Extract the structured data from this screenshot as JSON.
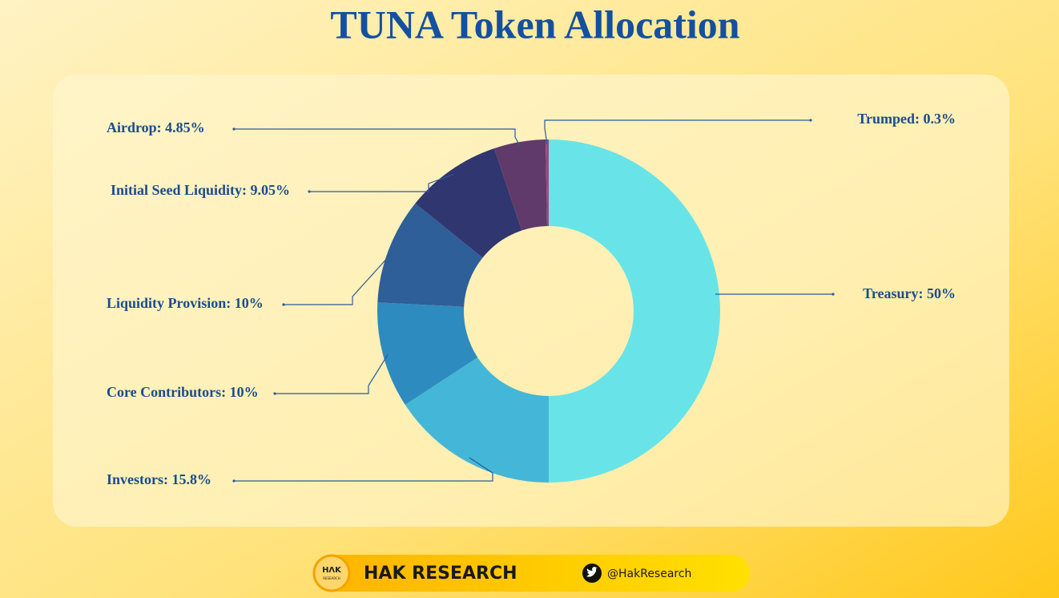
{
  "chart_data": {
    "type": "donut",
    "title": "TUNA Token Allocation",
    "categories": [
      "Treasury: 50%",
      "Investors: 15.8%",
      "Core Contributors: 10%",
      "Liquidity Provision: 10%",
      "Initial Seed Liquidity: 9.05%",
      "Airdrop: 4.85%",
      "Trumped: 0.3%"
    ],
    "values": [
      50,
      15.8,
      10,
      10,
      9.05,
      4.85,
      0.3
    ],
    "colors": [
      "#68e4e8",
      "#44b7d8",
      "#2e8bbf",
      "#2e5f99",
      "#303670",
      "#5f3a6a",
      "#9a4a7a"
    ]
  },
  "footer": {
    "logo": "HΛK",
    "logo_sub": "RESEARCH",
    "brand": "HAK RESEARCH",
    "handle": "@HakResearch"
  }
}
